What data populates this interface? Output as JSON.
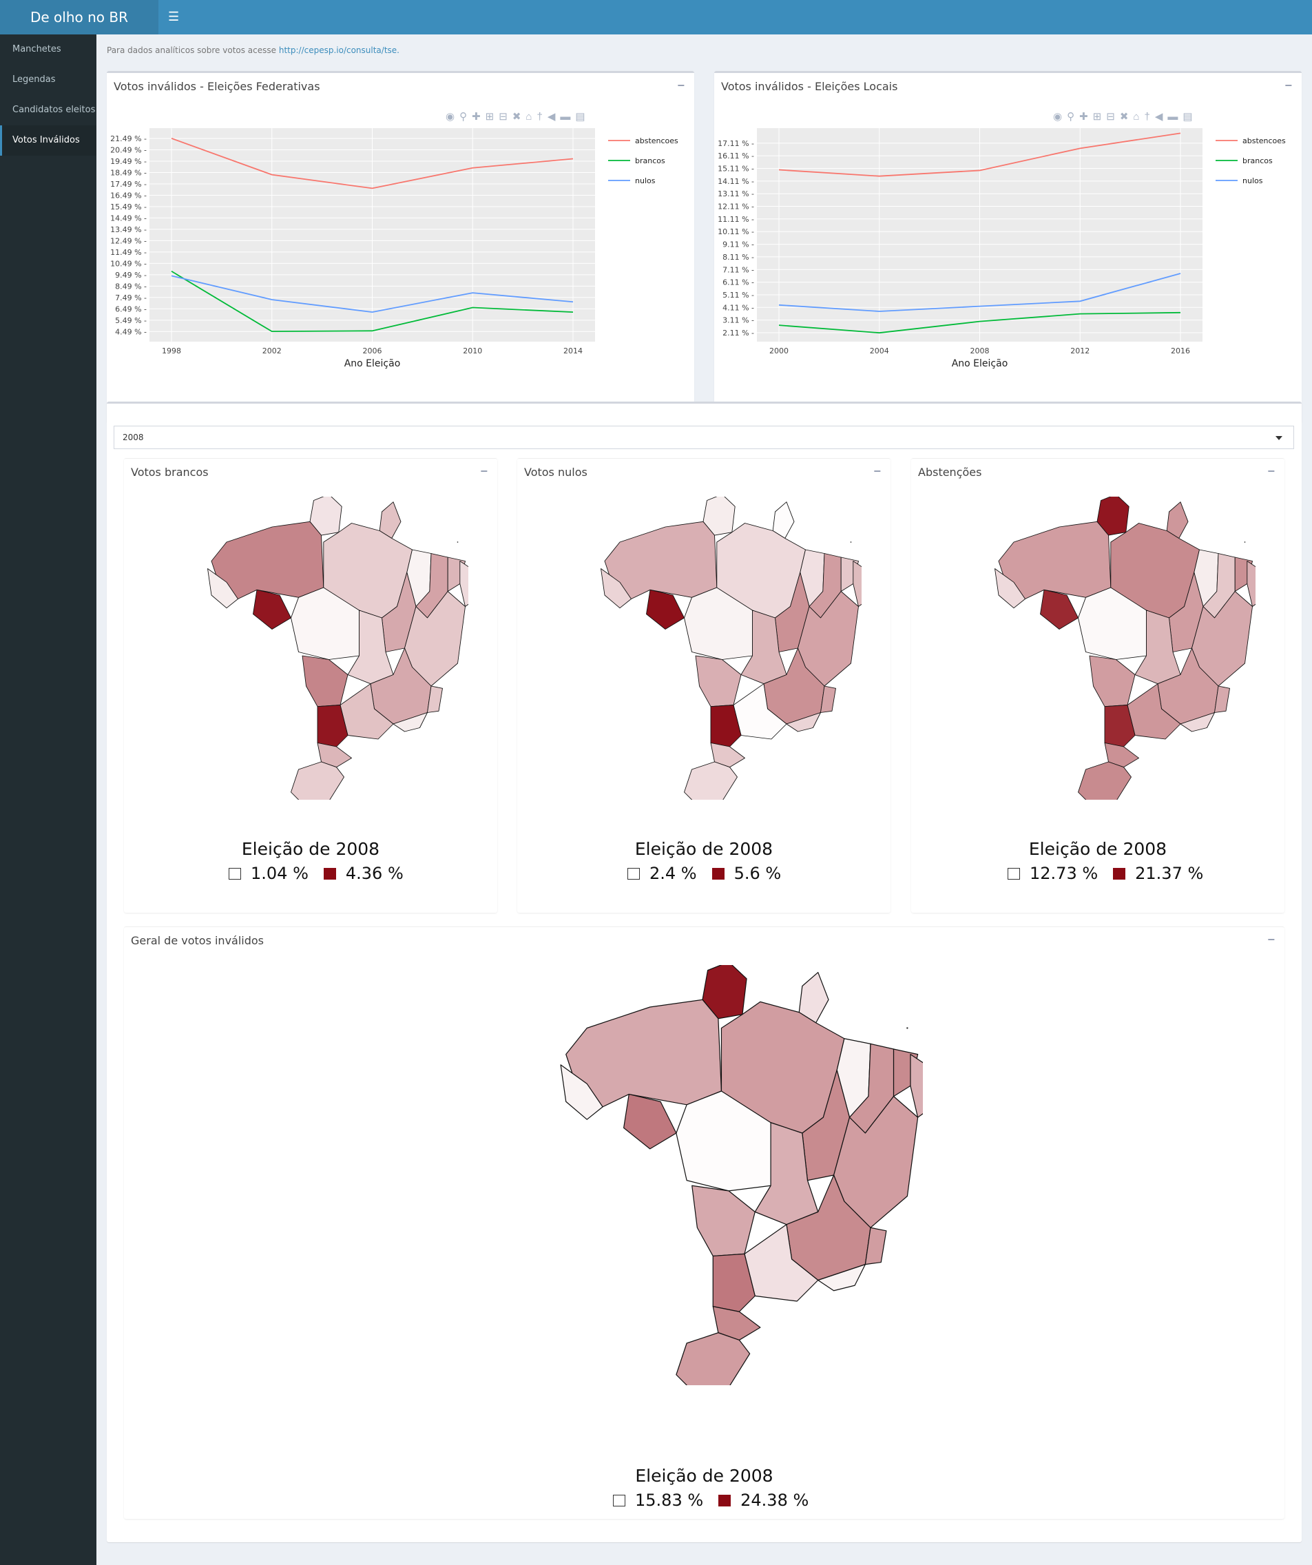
{
  "app": {
    "title": "De olho no BR",
    "menu_icon": "hamburger-icon"
  },
  "sidebar": {
    "items": [
      {
        "label": "Manchetes",
        "active": false
      },
      {
        "label": "Legendas",
        "active": false
      },
      {
        "label": "Candidatos eleitos",
        "active": false
      },
      {
        "label": "Votos Inválidos",
        "active": true
      }
    ]
  },
  "info": {
    "prefix": "Para dados analíticos sobre votos acesse ",
    "link": "http://cepesp.io/consulta/tse."
  },
  "colors": {
    "accent": "#3c8dbc",
    "low": "#ffffff",
    "high": "#8b0a14",
    "abstencoes": "#f8766d",
    "brancos": "#00ba38",
    "nulos": "#619cff"
  },
  "chart_data": [
    {
      "panel_title": "Votos inválidos - Eleições Federativas",
      "type": "line",
      "xlabel": "Ano Eleição",
      "ylabel": "",
      "x": [
        1998,
        2002,
        2006,
        2010,
        2014
      ],
      "ytick_labels": [
        "4.49 %",
        "5.49 %",
        "6.49 %",
        "7.49 %",
        "8.49 %",
        "9.49 %",
        "10.49 %",
        "11.49 %",
        "12.49 %",
        "13.49 %",
        "14.49 %",
        "15.49 %",
        "16.49 %",
        "17.49 %",
        "18.49 %",
        "19.49 %",
        "20.49 %",
        "21.49 %"
      ],
      "ylim": [
        3.6,
        22.4
      ],
      "grid": true,
      "legend_position": "right",
      "series": [
        {
          "name": "abstencoes",
          "color": "#f8766d",
          "values": [
            21.5,
            18.3,
            17.1,
            18.9,
            19.7
          ]
        },
        {
          "name": "brancos",
          "color": "#00ba38",
          "values": [
            9.8,
            4.5,
            4.55,
            6.6,
            6.2
          ]
        },
        {
          "name": "nulos",
          "color": "#619cff",
          "values": [
            9.4,
            7.3,
            6.2,
            7.9,
            7.1
          ]
        }
      ]
    },
    {
      "panel_title": "Votos inválidos - Eleições Locais",
      "type": "line",
      "xlabel": "Ano Eleição",
      "ylabel": "",
      "x": [
        2000,
        2004,
        2008,
        2012,
        2016
      ],
      "ytick_labels": [
        "2.11 %",
        "3.11 %",
        "4.11 %",
        "5.11 %",
        "6.11 %",
        "7.11 %",
        "8.11 %",
        "9.11 %",
        "10.11 %",
        "11.11 %",
        "12.11 %",
        "13.11 %",
        "14.11 %",
        "15.11 %",
        "16.11 %",
        "17.11 %"
      ],
      "ylim": [
        1.4,
        18.3
      ],
      "grid": true,
      "legend_position": "right",
      "series": [
        {
          "name": "abstencoes",
          "color": "#f8766d",
          "values": [
            15.0,
            14.5,
            14.95,
            16.7,
            17.9
          ]
        },
        {
          "name": "brancos",
          "color": "#00ba38",
          "values": [
            2.7,
            2.1,
            3.0,
            3.6,
            3.7
          ]
        },
        {
          "name": "nulos",
          "color": "#619cff",
          "values": [
            4.3,
            3.8,
            4.2,
            4.6,
            6.8
          ]
        }
      ]
    }
  ],
  "year_select": {
    "value": "2008"
  },
  "maps": [
    {
      "title": "Votos brancos",
      "legend_title": "Eleição de 2008",
      "min": "1.04 %",
      "max": "4.36 %"
    },
    {
      "title": "Votos nulos",
      "legend_title": "Eleição de 2008",
      "min": "2.4 %",
      "max": "5.6 %"
    },
    {
      "title": "Abstenções",
      "legend_title": "Eleição de 2008",
      "min": "12.73 %",
      "max": "21.37 %"
    },
    {
      "title": "Geral de votos inválidos",
      "legend_title": "Eleição de 2008",
      "min": "15.83 %",
      "max": "24.38 %"
    }
  ],
  "controls": {
    "collapse_symbol": "−"
  },
  "modebar_icons": [
    "camera-icon",
    "zoom-icon",
    "pan-icon",
    "zoom-in-icon",
    "zoom-out-icon",
    "autoscale-icon",
    "home-icon",
    "spike-icon",
    "hover-closest-icon",
    "hover-compare-icon",
    "plotly-logo"
  ]
}
